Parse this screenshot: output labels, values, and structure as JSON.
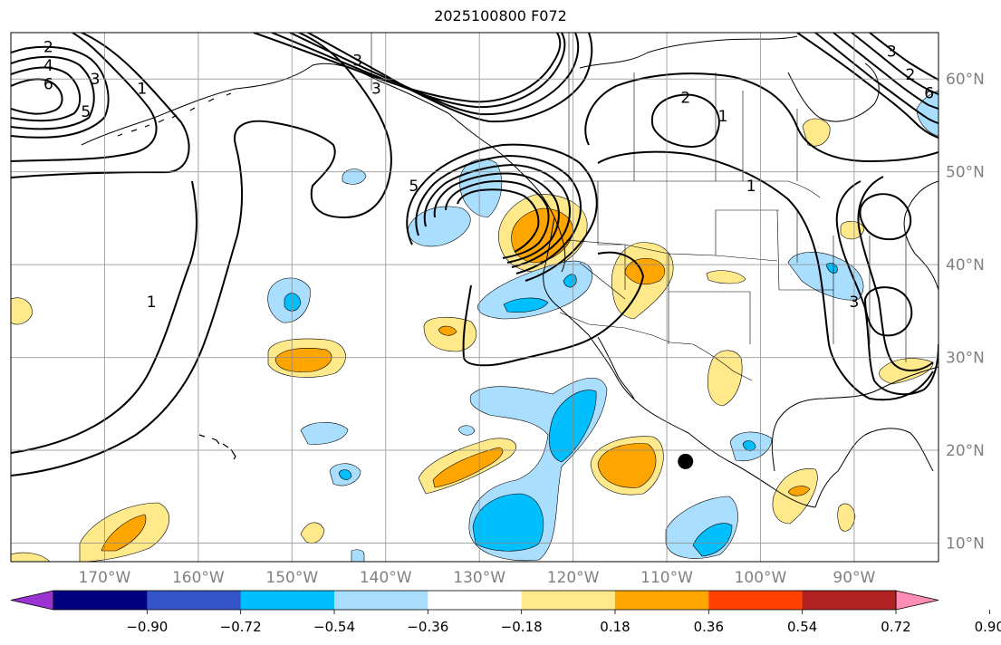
{
  "title": "2025100800 F072",
  "map": {
    "lon_range": [
      -180,
      -81
    ],
    "lat_range": [
      8,
      65
    ],
    "lon_ticks": [
      {
        "value": -170,
        "label": "170°W"
      },
      {
        "value": -160,
        "label": "160°W"
      },
      {
        "value": -150,
        "label": "150°W"
      },
      {
        "value": -140,
        "label": "140°W"
      },
      {
        "value": -130,
        "label": "130°W"
      },
      {
        "value": -120,
        "label": "120°W"
      },
      {
        "value": -110,
        "label": "110°W"
      },
      {
        "value": -100,
        "label": "100°W"
      },
      {
        "value": -90,
        "label": "90°W"
      }
    ],
    "lat_ticks": [
      {
        "value": 10,
        "label": "10°N"
      },
      {
        "value": 20,
        "label": "20°N"
      },
      {
        "value": 30,
        "label": "30°N"
      },
      {
        "value": 40,
        "label": "40°N"
      },
      {
        "value": 50,
        "label": "50°N"
      },
      {
        "value": 60,
        "label": "60°N"
      }
    ],
    "gridlines": true,
    "marker": {
      "lon": -108,
      "lat": 18.8,
      "color": "#000000"
    },
    "contour_labels": [
      {
        "text": "2",
        "lon": -176,
        "lat": 63.5
      },
      {
        "text": "4",
        "lon": -176,
        "lat": 61.5
      },
      {
        "text": "6",
        "lon": -176,
        "lat": 59.5
      },
      {
        "text": "3",
        "lon": -171,
        "lat": 60.0
      },
      {
        "text": "5",
        "lon": -172,
        "lat": 56.5
      },
      {
        "text": "1",
        "lon": -166,
        "lat": 59.0
      },
      {
        "text": "1",
        "lon": -165,
        "lat": 36.0
      },
      {
        "text": "3",
        "lon": -143,
        "lat": 62.0
      },
      {
        "text": "3",
        "lon": -141,
        "lat": 59.0
      },
      {
        "text": "5",
        "lon": -137,
        "lat": 48.5
      },
      {
        "text": "2",
        "lon": -108,
        "lat": 58.0
      },
      {
        "text": "1",
        "lon": -104,
        "lat": 56.0
      },
      {
        "text": "1",
        "lon": -101,
        "lat": 48.5
      },
      {
        "text": "3",
        "lon": -86,
        "lat": 63.0
      },
      {
        "text": "2",
        "lon": -84,
        "lat": 60.5
      },
      {
        "text": "6",
        "lon": -82,
        "lat": 58.5
      },
      {
        "text": "3",
        "lon": -90,
        "lat": 36.0
      }
    ]
  },
  "colorbar": {
    "tick_labels": [
      "−0.90",
      "−0.72",
      "−0.54",
      "−0.36",
      "−0.18",
      "0.18",
      "0.36",
      "0.54",
      "0.72",
      "0.90"
    ],
    "colors": [
      "#9b32d2",
      "#000080",
      "#3455c8",
      "#00bfff",
      "#aadeff",
      "#ffffff",
      "#ffe98a",
      "#ffa500",
      "#ff4000",
      "#b22222",
      "#ff8cb4"
    ]
  }
}
